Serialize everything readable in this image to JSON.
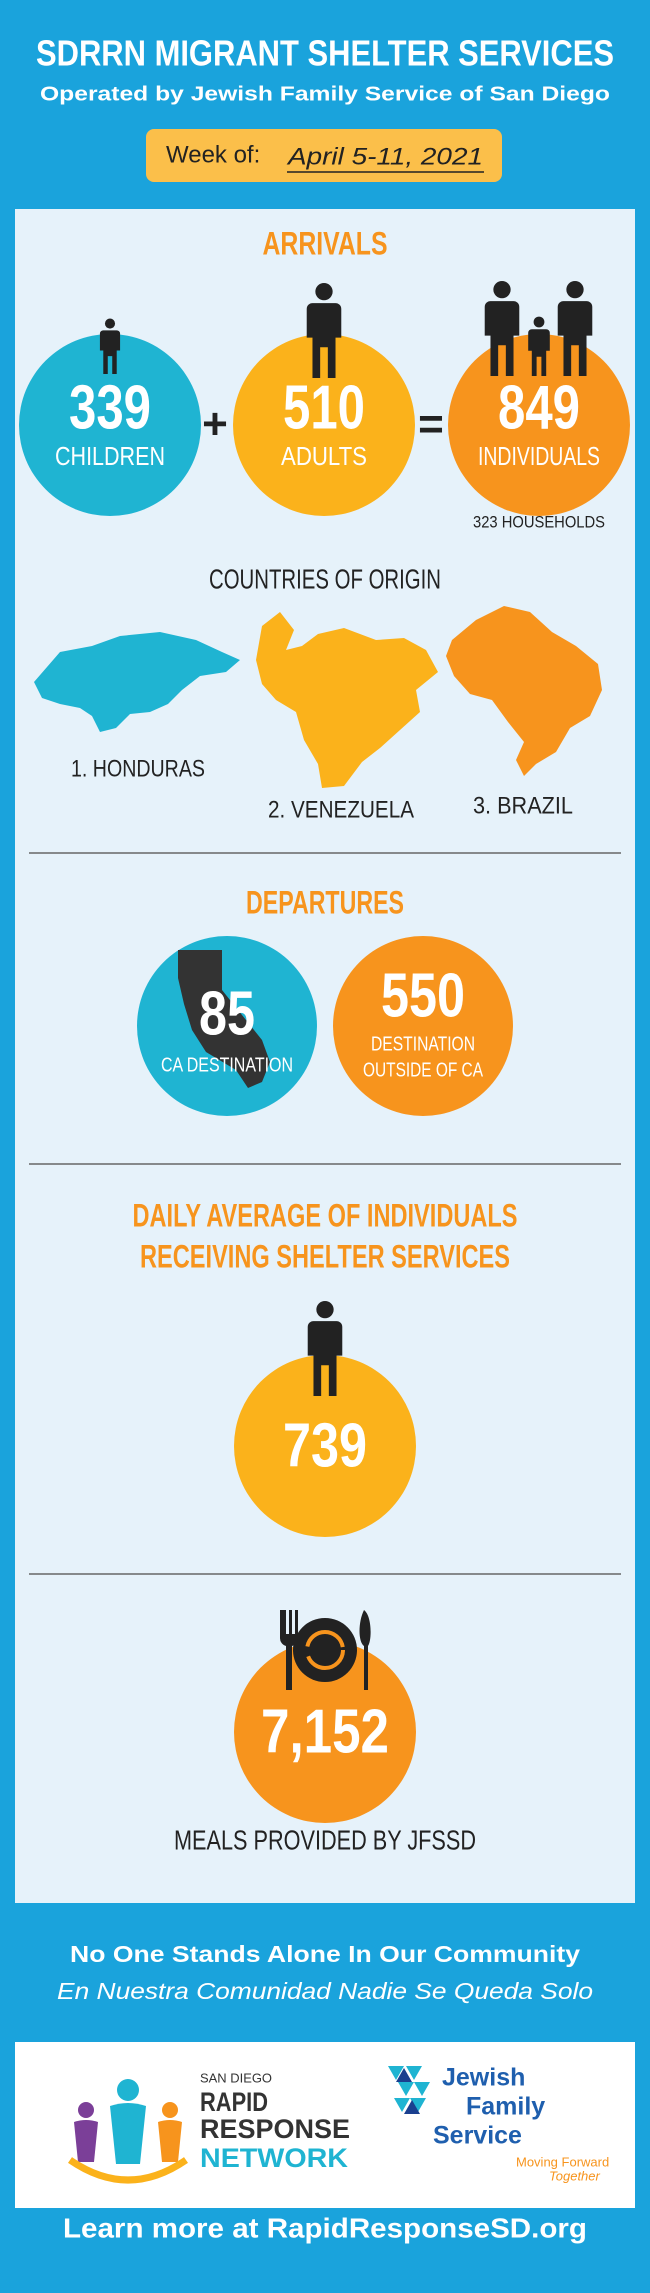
{
  "header": {
    "title": "SDRRN MIGRANT SHELTER SERVICES",
    "subtitle": "Operated by Jewish Family Service of San Diego",
    "week_label": "Week of:",
    "week_dates": "April 5-11, 2021"
  },
  "arrivals": {
    "title": "ARRIVALS",
    "children": {
      "value": "339",
      "label": "CHILDREN"
    },
    "plus": "+",
    "adults": {
      "value": "510",
      "label": "ADULTS"
    },
    "equals": "=",
    "individuals": {
      "value": "849",
      "label": "INDIVIDUALS"
    },
    "households": "323 HOUSEHOLDS"
  },
  "countries": {
    "title": "COUNTRIES OF ORIGIN",
    "items": [
      "1. HONDURAS",
      "2. VENEZUELA",
      "3. BRAZIL"
    ]
  },
  "departures": {
    "title": "DEPARTURES",
    "ca": {
      "value": "85",
      "label": "CA DESTINATION"
    },
    "outside": {
      "value": "550",
      "label_lines": [
        "DESTINATION",
        "OUTSIDE OF CA"
      ]
    }
  },
  "daily_average": {
    "title_lines": [
      "DAILY AVERAGE OF INDIVIDUALS",
      "RECEIVING SHELTER SERVICES"
    ],
    "value": "739"
  },
  "meals": {
    "value": "7,152",
    "label": "MEALS PROVIDED BY JFSSD"
  },
  "footer": {
    "tagline": "No One Stands Alone In Our Community",
    "tagline_es": "En Nuestra Comunidad Nadie Se Queda Solo",
    "rrn_logo": {
      "city": "SAN DIEGO",
      "line1": "RAPID",
      "line2": "RESPONSE",
      "line3": "NETWORK"
    },
    "jfs_logo": {
      "line1": "Jewish",
      "line2": "Family",
      "line3": "Service",
      "slogan1": "Moving Forward",
      "slogan2": "Together"
    },
    "link": "Learn more at RapidResponseSD.org"
  }
}
